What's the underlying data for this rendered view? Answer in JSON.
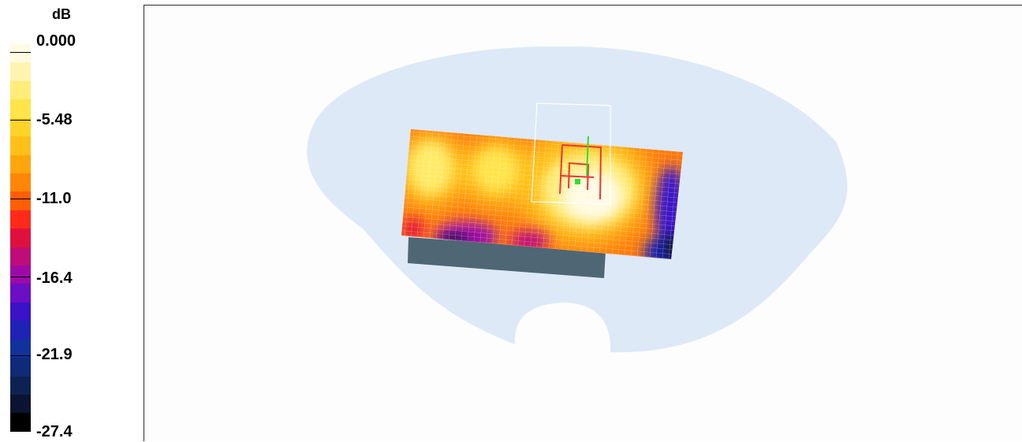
{
  "legend": {
    "unit": "dB",
    "tick_labels": [
      "0.000",
      "-5.48",
      "-11.0",
      "-16.4",
      "-21.9",
      "-27.4"
    ],
    "colors": [
      "#fffbe3",
      "#fff3b0",
      "#ffed7a",
      "#ffe44a",
      "#ffd428",
      "#ffc018",
      "#ffa60c",
      "#ff8608",
      "#ff5e06",
      "#ff2a1a",
      "#e0103e",
      "#bf0c78",
      "#9c0aa6",
      "#6c0ec4",
      "#3a12c8",
      "#1f22b4",
      "#10329a",
      "#0e2a78",
      "#0c2252",
      "#0a1430",
      "#000000"
    ]
  },
  "viewport": {
    "phantom_color": "#dde9f7",
    "block_color": "#4f6675",
    "device_outline_color": "#ee3333",
    "axis_color": "#33dd33"
  }
}
